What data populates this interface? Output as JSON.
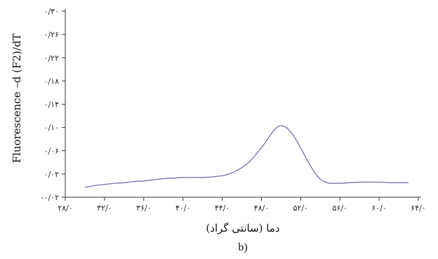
{
  "chart_data": {
    "type": "line",
    "title": "",
    "ylabel": "Fluorescence –d (F2)/dT",
    "xlabel": "دما (سانتی گراد)",
    "panel_label": "b)",
    "xlim": [
      28,
      64
    ],
    "ylim": [
      -0.02,
      0.3
    ],
    "xticks": [
      28,
      32,
      36,
      40,
      44,
      48,
      52,
      56,
      60,
      64
    ],
    "xtick_labels": [
      "۲۸/۰",
      "۳۲/۰",
      "۳۶/۰",
      "۴۰/۰",
      "۴۴/۰",
      "۴۸/۰",
      "۵۲/۰",
      "۵۶/۰",
      "۶۰/۰",
      "۶۴/۰"
    ],
    "yticks": [
      -0.02,
      0.02,
      0.06,
      0.1,
      0.14,
      0.18,
      0.22,
      0.26,
      0.3
    ],
    "ytick_labels": [
      "-۰/۰۲",
      "۰/۰۲",
      "۰/۰۶",
      "۰/۱۰",
      "۰/۱۴",
      "۰/۱۸",
      "۰/۲۲",
      "۰/۲۶",
      "۰/۳۰"
    ],
    "grid": false,
    "line_color": "#7b6bb0",
    "series": [
      {
        "x": [
          30,
          31,
          32,
          33,
          34,
          35,
          36,
          37,
          38,
          39,
          40,
          41,
          42,
          43,
          44,
          44.5,
          45,
          45.5,
          46,
          46.5,
          47,
          47.5,
          48,
          48.5,
          49,
          49.5,
          50,
          50.5,
          51,
          51.5,
          52,
          52.5,
          53,
          53.5,
          54,
          54.5,
          55,
          55.5,
          56,
          57,
          58,
          59,
          60,
          61,
          62,
          63
        ],
        "y": [
          -0.003,
          0.0,
          0.002,
          0.004,
          0.005,
          0.007,
          0.008,
          0.01,
          0.012,
          0.013,
          0.014,
          0.014,
          0.014,
          0.015,
          0.017,
          0.019,
          0.022,
          0.026,
          0.031,
          0.037,
          0.045,
          0.055,
          0.065,
          0.077,
          0.089,
          0.099,
          0.103,
          0.1,
          0.092,
          0.08,
          0.065,
          0.049,
          0.034,
          0.021,
          0.011,
          0.006,
          0.004,
          0.004,
          0.004,
          0.005,
          0.006,
          0.006,
          0.006,
          0.005,
          0.005,
          0.005
        ]
      }
    ]
  }
}
